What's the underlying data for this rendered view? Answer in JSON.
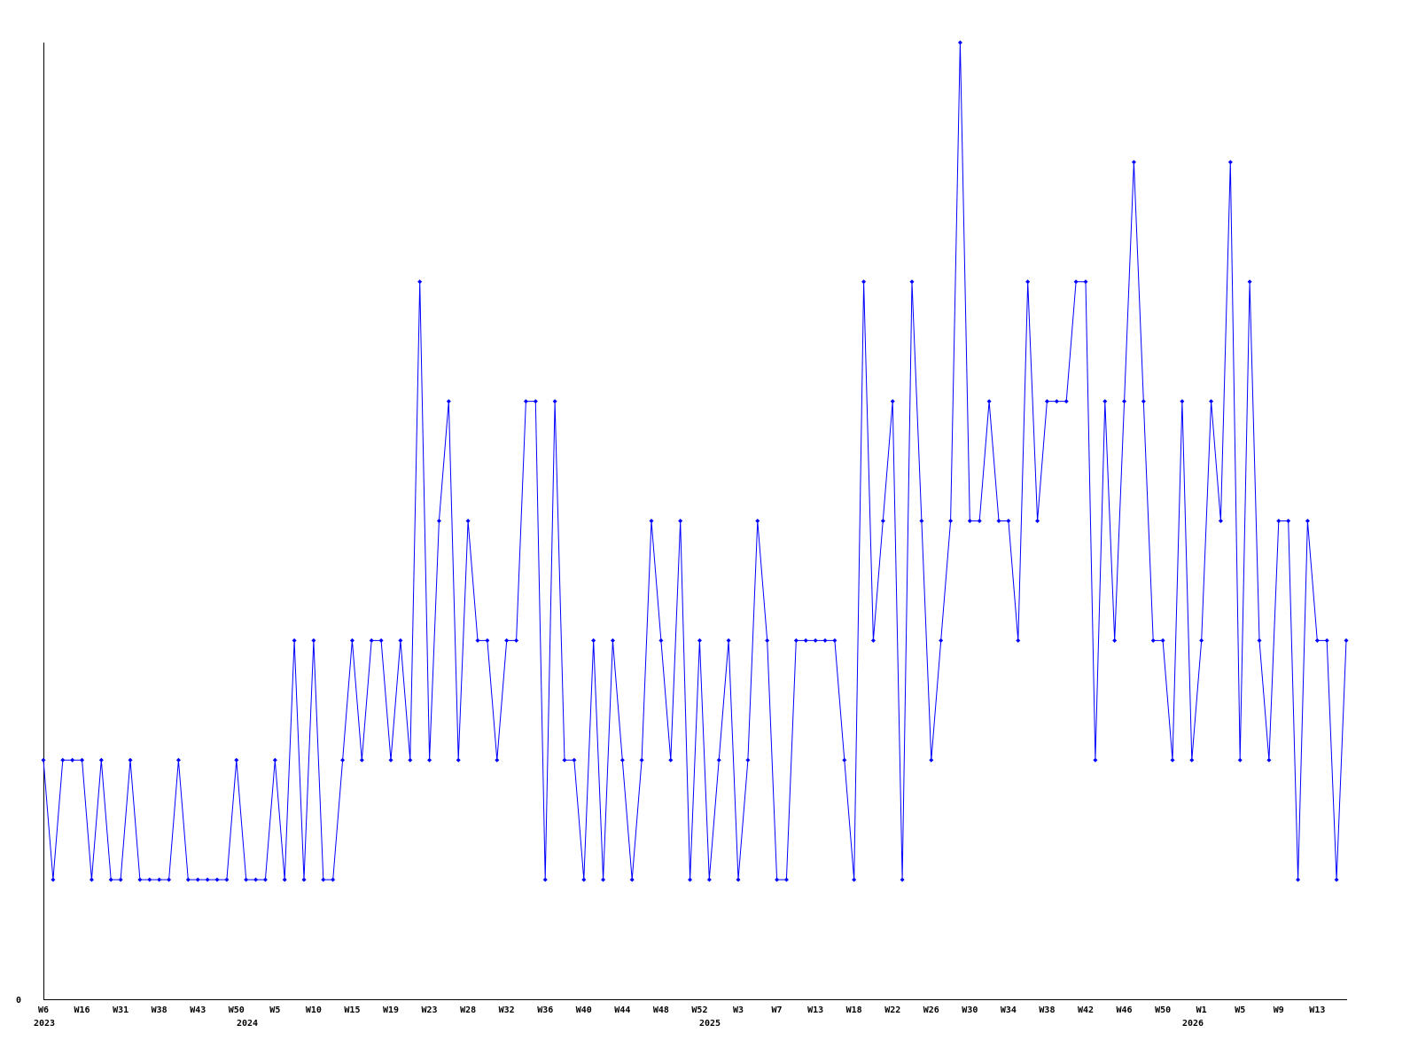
{
  "chart_data": {
    "type": "line",
    "title": "",
    "xlabel": "",
    "ylabel": "",
    "ylim": [
      0,
      8
    ],
    "y_tick_labels": [
      "0"
    ],
    "grid": false,
    "legend": "none",
    "line_color": "#0000ff",
    "axis_color": "#000000",
    "values": [
      2,
      1,
      2,
      2,
      2,
      1,
      2,
      1,
      1,
      2,
      1,
      1,
      1,
      1,
      2,
      1,
      1,
      1,
      1,
      1,
      2,
      1,
      1,
      1,
      2,
      1,
      3,
      1,
      3,
      1,
      1,
      2,
      3,
      2,
      3,
      3,
      2,
      3,
      2,
      6,
      2,
      4,
      5,
      2,
      4,
      3,
      3,
      2,
      3,
      3,
      5,
      5,
      1,
      5,
      2,
      2,
      1,
      3,
      1,
      3,
      2,
      1,
      2,
      4,
      3,
      2,
      4,
      1,
      3,
      1,
      2,
      3,
      1,
      2,
      4,
      3,
      1,
      1,
      3,
      3,
      3,
      3,
      3,
      2,
      1,
      6,
      3,
      4,
      5,
      1,
      6,
      4,
      2,
      3,
      4,
      8,
      4,
      4,
      5,
      4,
      4,
      3,
      6,
      4,
      5,
      5,
      5,
      6,
      6,
      2,
      5,
      3,
      5,
      7,
      5,
      3,
      3,
      2,
      5,
      2,
      3,
      5,
      4,
      7,
      2,
      6,
      3,
      2,
      4,
      4,
      1,
      4,
      3,
      3,
      1,
      3
    ],
    "x_ticks": [
      "W6",
      "W16",
      "W31",
      "W38",
      "W43",
      "W50",
      "W5",
      "W10",
      "W15",
      "W19",
      "W23",
      "W28",
      "W32",
      "W36",
      "W40",
      "W44",
      "W48",
      "W52",
      "W3",
      "W7",
      "W13",
      "W18",
      "W22",
      "W26",
      "W30",
      "W34",
      "W38",
      "W42",
      "W46",
      "W50",
      "W1",
      "W5",
      "W9",
      "W13"
    ],
    "x_tick_every": 4,
    "years": [
      "2023",
      "2024",
      "2025",
      "2026"
    ]
  }
}
